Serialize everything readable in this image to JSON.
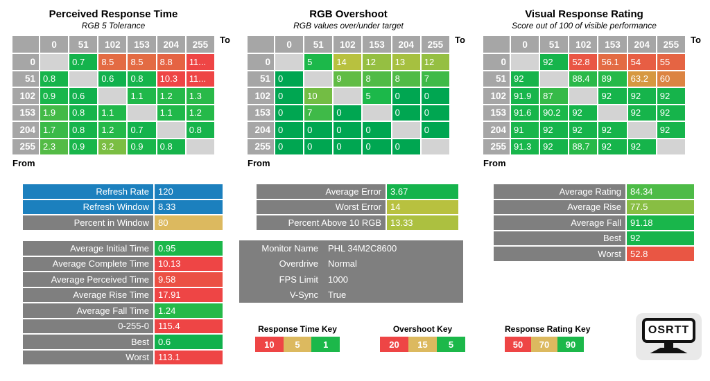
{
  "colors": {
    "best": "#00A651",
    "good": "#1CB84A",
    "mid": "#C9C23E",
    "bad": "#EE4545",
    "tan": "#DCB95F",
    "blue": "#1C80BE",
    "gray": "#7F7F7F",
    "header_gray": "#A6A6A6",
    "diag_gray": "#D3D3D3"
  },
  "scales": {
    "time": {
      "e": 0,
      "g": 1,
      "m": 5,
      "b": 10
    },
    "overshoot": {
      "e": 0,
      "g": 5,
      "m": 15,
      "b": 20
    },
    "rating": {
      "e": 100,
      "g": 90,
      "m": 70,
      "b": 50
    }
  },
  "chart_data": [
    {
      "type": "heatmap",
      "title": "Perceived Response Time",
      "subtitle": "RGB 5 Tolerance",
      "scale": "time",
      "to_label": "To",
      "from_label": "From",
      "x_categories": [
        "0",
        "51",
        "102",
        "153",
        "204",
        "255"
      ],
      "y_categories": [
        "0",
        "51",
        "102",
        "153",
        "204",
        "255"
      ],
      "cells": [
        [
          null,
          "0.7",
          "8.5",
          "8.5",
          "8.8",
          "11..."
        ],
        [
          "0.8",
          null,
          "0.6",
          "0.8",
          "10.3",
          "11..."
        ],
        [
          "0.9",
          "0.6",
          null,
          "1.1",
          "1.2",
          "1.3"
        ],
        [
          "1.9",
          "0.8",
          "1.1",
          null,
          "1.1",
          "1.2"
        ],
        [
          "1.7",
          "0.8",
          "1.2",
          "0.7",
          null,
          "0.8"
        ],
        [
          "2.3",
          "0.9",
          "3.2",
          "0.9",
          "0.8",
          null
        ]
      ]
    },
    {
      "type": "heatmap",
      "title": "RGB Overshoot",
      "subtitle": "RGB values over/under target",
      "scale": "overshoot",
      "to_label": "To",
      "from_label": "From",
      "x_categories": [
        "0",
        "51",
        "102",
        "153",
        "204",
        "255"
      ],
      "y_categories": [
        "0",
        "51",
        "102",
        "153",
        "204",
        "255"
      ],
      "cells": [
        [
          null,
          "5",
          "14",
          "12",
          "13",
          "12"
        ],
        [
          "0",
          null,
          "9",
          "8",
          "8",
          "7"
        ],
        [
          "0",
          "10",
          null,
          "5",
          "0",
          "0"
        ],
        [
          "0",
          "7",
          "0",
          null,
          "0",
          "0"
        ],
        [
          "0",
          "0",
          "0",
          "0",
          null,
          "0"
        ],
        [
          "0",
          "0",
          "0",
          "0",
          "0",
          null
        ]
      ]
    },
    {
      "type": "heatmap",
      "title": "Visual Response Rating",
      "subtitle": "Score out of 100 of visible performance",
      "scale": "rating",
      "to_label": "To",
      "from_label": "From",
      "x_categories": [
        "0",
        "51",
        "102",
        "153",
        "204",
        "255"
      ],
      "y_categories": [
        "0",
        "51",
        "102",
        "153",
        "204",
        "255"
      ],
      "cells": [
        [
          null,
          "92",
          "52.8",
          "56.1",
          "54",
          "55"
        ],
        [
          "92",
          null,
          "88.4",
          "89",
          "63.2",
          "60"
        ],
        [
          "91.9",
          "87",
          null,
          "92",
          "92",
          "92"
        ],
        [
          "91.6",
          "90.2",
          "92",
          null,
          "92",
          "92"
        ],
        [
          "91",
          "92",
          "92",
          "92",
          null,
          "92"
        ],
        [
          "91.3",
          "92",
          "88.7",
          "92",
          "92",
          null
        ]
      ]
    }
  ],
  "panels": {
    "refresh": {
      "rows": [
        {
          "label": "Refresh Rate",
          "value": "120",
          "label_bg": "blue",
          "value_bg": "blue"
        },
        {
          "label": "Refresh Window",
          "value": "8.33",
          "label_bg": "blue",
          "value_bg": "blue"
        },
        {
          "label": "Percent in Window",
          "value": "80",
          "label_bg": "gray",
          "value_bg": "tan"
        }
      ]
    },
    "time": {
      "scale": "time",
      "rows": [
        {
          "label": "Average Initial Time",
          "value": "0.95"
        },
        {
          "label": "Average Complete Time",
          "value": "10.13"
        },
        {
          "label": "Average Perceived Time",
          "value": "9.58"
        },
        {
          "label": "Average Rise Time",
          "value": "17.91"
        },
        {
          "label": "Average Fall Time",
          "value": "1.24"
        },
        {
          "label": "0-255-0",
          "value": "115.4"
        },
        {
          "label": "Best",
          "value": "0.6"
        },
        {
          "label": "Worst",
          "value": "113.1"
        }
      ]
    },
    "error": {
      "scale": "overshoot",
      "rows": [
        {
          "label": "Average Error",
          "value": "3.67"
        },
        {
          "label": "Worst Error",
          "value": "14"
        },
        {
          "label": "Percent Above 10 RGB",
          "value": "13.33"
        }
      ]
    },
    "monitor": {
      "rows": [
        {
          "label": "Monitor Name",
          "value": "PHL 34M2C8600"
        },
        {
          "label": "Overdrive",
          "value": "Normal"
        },
        {
          "label": "FPS Limit",
          "value": "1000"
        },
        {
          "label": "V-Sync",
          "value": "True"
        }
      ]
    },
    "rating": {
      "scale": "rating",
      "rows": [
        {
          "label": "Average Rating",
          "value": "84.34"
        },
        {
          "label": "Average Rise",
          "value": "77.5"
        },
        {
          "label": "Average Fall",
          "value": "91.18"
        },
        {
          "label": "Best",
          "value": "92"
        },
        {
          "label": "Worst",
          "value": "52.8"
        }
      ]
    }
  },
  "keys": [
    {
      "title": "Response Time Key",
      "cells": [
        {
          "label": "10",
          "bg": "bad"
        },
        {
          "label": "5",
          "bg": "tan"
        },
        {
          "label": "1",
          "bg": "good"
        }
      ]
    },
    {
      "title": "Overshoot Key",
      "cells": [
        {
          "label": "20",
          "bg": "bad"
        },
        {
          "label": "15",
          "bg": "tan"
        },
        {
          "label": "5",
          "bg": "good"
        }
      ]
    },
    {
      "title": "Response Rating Key",
      "cells": [
        {
          "label": "50",
          "bg": "bad"
        },
        {
          "label": "70",
          "bg": "tan"
        },
        {
          "label": "90",
          "bg": "good"
        }
      ]
    }
  ],
  "logo": {
    "text": "OSRTT"
  }
}
